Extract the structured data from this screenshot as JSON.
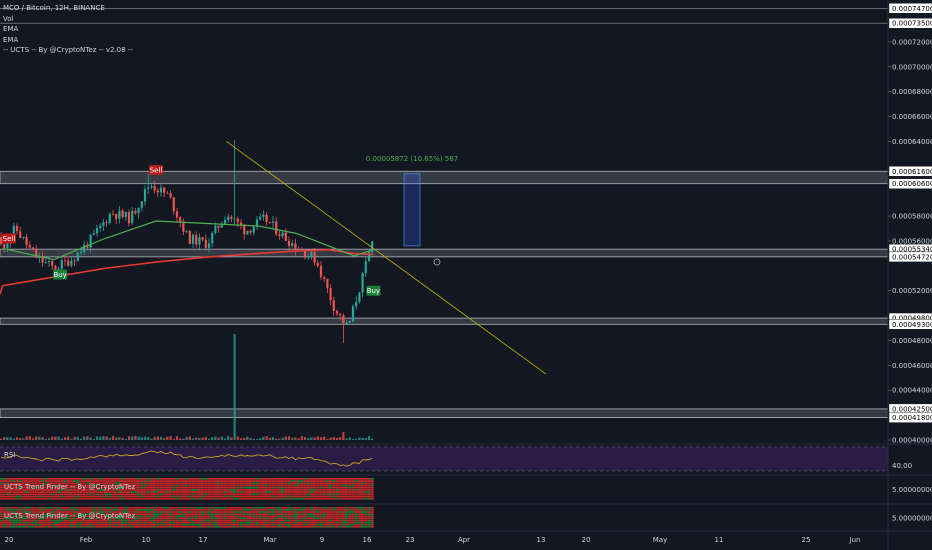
{
  "header": {
    "title": "MCO / Bitcoin, 12H, BINANCE",
    "indicators": [
      "Vol",
      "EMA",
      "EMA",
      "-- UCTS -- By @CryptoNTez -- v2.08 --"
    ]
  },
  "colors": {
    "background": "#131722",
    "up": "#26a69a",
    "down": "#ef5350",
    "ema_fast": "#4caf50",
    "ema_slow": "#e53935",
    "trendline": "#c8b400",
    "rsi": "#c9a227",
    "rsi_fill": "#2a1d45",
    "measure": "#5b9cf6",
    "measure_text": "#4caf50"
  },
  "price_axis": {
    "labels": [
      "0.00074700",
      "0.00073500",
      "0.00072000",
      "0.00070000",
      "0.00068000",
      "0.00066000",
      "0.00064000",
      "0.00061600",
      "0.00060600",
      "0.00058000",
      "0.00056000",
      "0.00055340",
      "0.00054720",
      "0.00052000",
      "0.00049800",
      "0.00049300",
      "0.00048000",
      "0.00046000",
      "0.00044000",
      "0.00042500",
      "0.00041800",
      "0.00040000"
    ]
  },
  "time_axis": {
    "labels": [
      "20",
      "Feb",
      "10",
      "17",
      "Mar",
      "9",
      "16",
      "23",
      "Apr",
      "13",
      "20",
      "May",
      "11",
      "25",
      "Jun"
    ]
  },
  "annotations": {
    "measure_label": "0.00005872 (10.65%) 587",
    "sell_label": "Sell",
    "buy_label": "Buy"
  },
  "rsi_pane": {
    "label": "RSI",
    "level": "40.00"
  },
  "trend_panes": [
    {
      "label": "UCTS Trend Finder -- By @CryptoNTez",
      "value": "5.00000000"
    },
    {
      "label": "UCTS Trend Finder -- By @CryptoNTez",
      "value": "5.00000000"
    }
  ],
  "chart_data": {
    "type": "candlestick",
    "title": "MCO / Bitcoin, 12H, BINANCE",
    "ylim": [
      0.0004,
      0.00075
    ],
    "horizontal_levels": [
      0.000747,
      0.000735,
      0.000616,
      0.000606,
      0.0005534,
      0.0005472,
      0.000498,
      0.000493,
      0.000425,
      0.000418
    ],
    "close_path": [
      {
        "date": "2020-01-19",
        "value": 0.000556
      },
      {
        "date": "2020-01-21",
        "value": 0.00057
      },
      {
        "date": "2020-01-24",
        "value": 0.000548
      },
      {
        "date": "2020-01-27",
        "value": 0.000538
      },
      {
        "date": "2020-01-30",
        "value": 0.000546
      },
      {
        "date": "2020-02-02",
        "value": 0.000562
      },
      {
        "date": "2020-02-05",
        "value": 0.000583
      },
      {
        "date": "2020-02-08",
        "value": 0.000578
      },
      {
        "date": "2020-02-11",
        "value": 0.000606
      },
      {
        "date": "2020-02-14",
        "value": 0.000596
      },
      {
        "date": "2020-02-17",
        "value": 0.000562
      },
      {
        "date": "2020-02-20",
        "value": 0.000558
      },
      {
        "date": "2020-02-23",
        "value": 0.000582
      },
      {
        "date": "2020-02-26",
        "value": 0.000568
      },
      {
        "date": "2020-02-29",
        "value": 0.000578
      },
      {
        "date": "2020-03-02",
        "value": 0.000568
      },
      {
        "date": "2020-03-05",
        "value": 0.000555
      },
      {
        "date": "2020-03-08",
        "value": 0.000545
      },
      {
        "date": "2020-03-11",
        "value": 0.000505
      },
      {
        "date": "2020-03-13",
        "value": 0.00049
      },
      {
        "date": "2020-03-15",
        "value": 0.000525
      },
      {
        "date": "2020-03-17",
        "value": 0.000562
      }
    ],
    "ema_fast": [
      {
        "date": "2020-01-19",
        "value": 0.000554
      },
      {
        "date": "2020-01-27",
        "value": 0.000545
      },
      {
        "date": "2020-02-04",
        "value": 0.000562
      },
      {
        "date": "2020-02-12",
        "value": 0.000576
      },
      {
        "date": "2020-02-20",
        "value": 0.000574
      },
      {
        "date": "2020-02-28",
        "value": 0.000572
      },
      {
        "date": "2020-03-05",
        "value": 0.000566
      },
      {
        "date": "2020-03-10",
        "value": 0.000556
      },
      {
        "date": "2020-03-14",
        "value": 0.000548
      },
      {
        "date": "2020-03-17",
        "value": 0.000553
      }
    ],
    "ema_slow": [
      {
        "date": "2020-01-19",
        "value": 0.000524
      },
      {
        "date": "2020-01-27",
        "value": 0.000531
      },
      {
        "date": "2020-02-04",
        "value": 0.000538
      },
      {
        "date": "2020-02-12",
        "value": 0.000543
      },
      {
        "date": "2020-02-20",
        "value": 0.000547
      },
      {
        "date": "2020-02-28",
        "value": 0.00055
      },
      {
        "date": "2020-03-05",
        "value": 0.000552
      },
      {
        "date": "2020-03-10",
        "value": 0.000553
      },
      {
        "date": "2020-03-14",
        "value": 0.00055
      },
      {
        "date": "2020-03-17",
        "value": 0.000549
      }
    ],
    "trendline": [
      {
        "date": "2020-02-23",
        "value": 0.00064
      },
      {
        "date": "2020-04-13",
        "value": 0.000453
      }
    ],
    "measure": {
      "from": 0.000556,
      "to": 0.000614,
      "change": "0.00005872 (10.65%) 587"
    },
    "signals": [
      {
        "type": "Sell",
        "date": "2020-01-20",
        "value": 0.000562
      },
      {
        "type": "Buy",
        "date": "2020-01-28",
        "value": 0.000533
      },
      {
        "type": "Sell",
        "date": "2020-02-12",
        "value": 0.000617
      },
      {
        "type": "Buy",
        "date": "2020-03-17",
        "value": 0.00052
      }
    ]
  }
}
